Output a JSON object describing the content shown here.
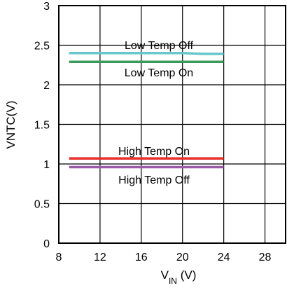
{
  "chart_data": {
    "type": "line",
    "xlabel_main": "V",
    "xlabel_sub": "IN",
    "xlabel_unit": " (V)",
    "ylabel": "VNTC(V)",
    "xlim": [
      8,
      30
    ],
    "ylim": [
      0,
      3
    ],
    "x_ticks": [
      8,
      12,
      16,
      20,
      24,
      28
    ],
    "y_ticks": [
      0,
      0.5,
      1,
      1.5,
      2,
      2.5,
      3
    ],
    "x_tick_labels": [
      "8",
      "12",
      "16",
      "20",
      "24",
      "28"
    ],
    "y_tick_labels": [
      "0",
      "0.5",
      "1",
      "1.5",
      "2",
      "2.5",
      "3"
    ],
    "grid": true,
    "series": [
      {
        "name": "Low Temp Off",
        "color": "#66c7cc",
        "x": [
          9,
          12,
          16,
          20,
          22,
          24
        ],
        "y": [
          2.4,
          2.4,
          2.4,
          2.4,
          2.39,
          2.39
        ]
      },
      {
        "name": "Low Temp On",
        "color": "#3a9a5c",
        "x": [
          9,
          24
        ],
        "y": [
          2.29,
          2.29
        ]
      },
      {
        "name": "High Temp On",
        "color": "#e8312a",
        "x": [
          9,
          24
        ],
        "y": [
          1.07,
          1.07
        ]
      },
      {
        "name": "High Temp Off",
        "color": "#9b5aa6",
        "x": [
          9,
          24
        ],
        "y": [
          0.96,
          0.96
        ]
      }
    ]
  }
}
